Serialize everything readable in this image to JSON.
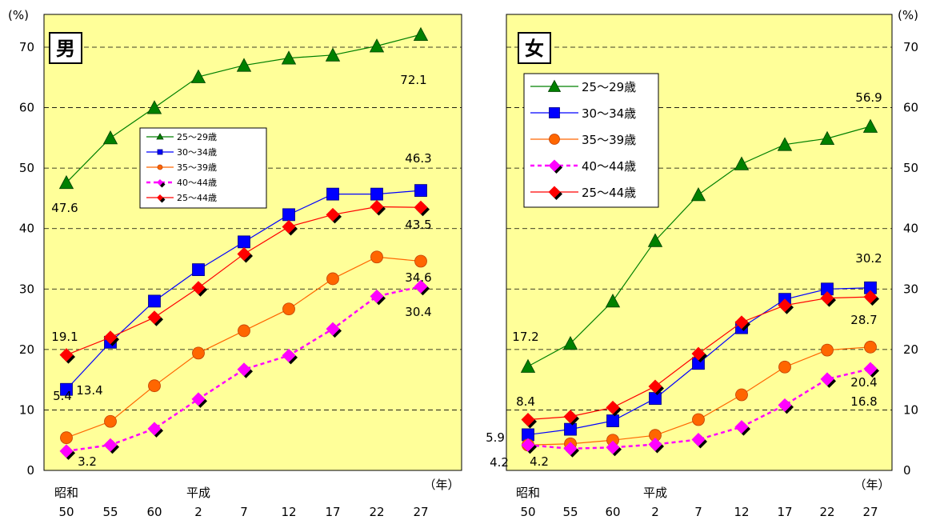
{
  "chart_data": [
    {
      "type": "line",
      "title": "男",
      "y_unit": "(%)",
      "x_unit": "（年）",
      "era_labels": [
        {
          "label": "昭和",
          "at_index": 0
        },
        {
          "label": "平成",
          "at_index": 3
        }
      ],
      "categories": [
        "50",
        "55",
        "60",
        "2",
        "7",
        "12",
        "17",
        "22",
        "27"
      ],
      "ylim": [
        0,
        70
      ],
      "yticks": [
        "0",
        "10",
        "20",
        "30",
        "40",
        "50",
        "60",
        "70"
      ],
      "grid": true,
      "legend_position": "center",
      "series": [
        {
          "name": "25〜29歳",
          "color": "#008000",
          "marker": "triangle",
          "dashed": false,
          "values": [
            47.6,
            55.0,
            60.0,
            65.1,
            67.0,
            68.2,
            68.7,
            70.2,
            72.1
          ]
        },
        {
          "name": "30〜34歳",
          "color": "#0000ff",
          "marker": "square",
          "dashed": false,
          "values": [
            13.4,
            21.2,
            28.0,
            33.2,
            37.8,
            42.3,
            45.7,
            45.7,
            46.3
          ]
        },
        {
          "name": "35〜39歳",
          "color": "#ff6600",
          "marker": "circle",
          "dashed": false,
          "values": [
            5.4,
            8.1,
            14.0,
            19.4,
            23.1,
            26.7,
            31.7,
            35.3,
            34.6
          ]
        },
        {
          "name": "40〜44歳",
          "color": "#ff00ff",
          "marker": "diamond",
          "dashed": true,
          "values": [
            3.2,
            4.2,
            6.9,
            11.8,
            16.7,
            19.0,
            23.4,
            28.8,
            30.4
          ]
        },
        {
          "name": "25〜44歳",
          "color": "#ff0000",
          "marker": "diamond",
          "dashed": false,
          "values": [
            19.1,
            22.0,
            25.3,
            30.2,
            35.8,
            40.3,
            42.3,
            43.6,
            43.5
          ]
        }
      ],
      "data_labels": [
        "47.6",
        "13.4",
        "19.1",
        "5.4",
        "3.2",
        "72.1",
        "46.3",
        "43.5",
        "34.6",
        "30.4"
      ]
    },
    {
      "type": "line",
      "title": "女",
      "y_unit": "(%)",
      "x_unit": "（年）",
      "era_labels": [
        {
          "label": "昭和",
          "at_index": 0
        },
        {
          "label": "平成",
          "at_index": 3
        }
      ],
      "categories": [
        "50",
        "55",
        "60",
        "2",
        "7",
        "12",
        "17",
        "22",
        "27"
      ],
      "ylim": [
        0,
        70
      ],
      "yticks": [
        "0",
        "10",
        "20",
        "30",
        "40",
        "50",
        "60",
        "70"
      ],
      "grid": true,
      "legend_position": "top-left",
      "series": [
        {
          "name": "25〜29歳",
          "color": "#008000",
          "marker": "triangle",
          "dashed": false,
          "values": [
            17.2,
            21.0,
            28.0,
            38.0,
            45.6,
            50.7,
            53.9,
            54.9,
            56.9
          ]
        },
        {
          "name": "30〜34歳",
          "color": "#0000ff",
          "marker": "square",
          "dashed": false,
          "values": [
            5.9,
            6.8,
            8.2,
            11.9,
            17.7,
            23.6,
            28.3,
            30.0,
            30.2
          ]
        },
        {
          "name": "35〜39歳",
          "color": "#ff6600",
          "marker": "circle",
          "dashed": false,
          "values": [
            4.2,
            4.4,
            5.0,
            5.8,
            8.4,
            12.5,
            17.1,
            19.9,
            20.4
          ]
        },
        {
          "name": "40〜44歳",
          "color": "#ff00ff",
          "marker": "diamond",
          "dashed": true,
          "values": [
            4.2,
            3.6,
            3.8,
            4.3,
            5.1,
            7.2,
            10.8,
            15.1,
            16.8
          ]
        },
        {
          "name": "25〜44歳",
          "color": "#ff0000",
          "marker": "diamond",
          "dashed": false,
          "values": [
            8.4,
            8.9,
            10.4,
            13.9,
            19.3,
            24.5,
            27.3,
            28.5,
            28.7
          ]
        }
      ],
      "data_labels": [
        "17.2",
        "8.4",
        "5.9",
        "4.2",
        "4.2",
        "56.9",
        "30.2",
        "28.7",
        "20.4",
        "16.8"
      ]
    }
  ]
}
